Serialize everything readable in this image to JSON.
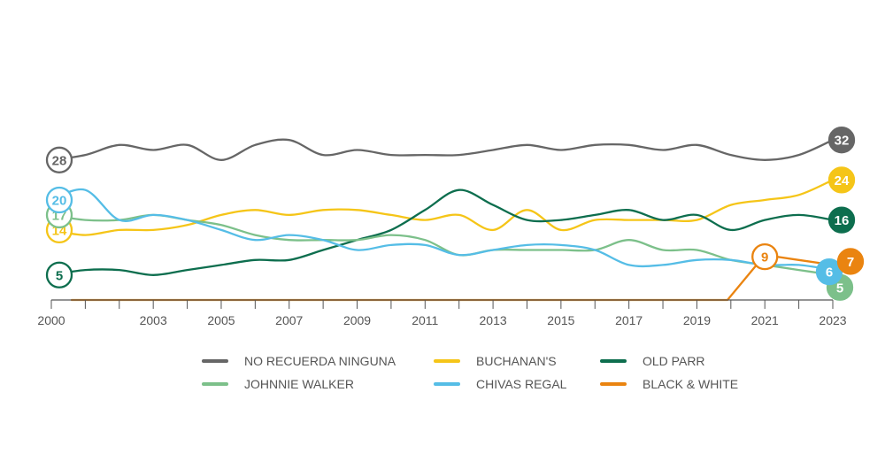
{
  "chart_data": {
    "type": "line",
    "x": [
      2000,
      2001,
      2002,
      2003,
      2004,
      2005,
      2006,
      2007,
      2008,
      2009,
      2010,
      2011,
      2012,
      2013,
      2014,
      2015,
      2016,
      2017,
      2018,
      2019,
      2020,
      2021,
      2022,
      2023
    ],
    "x_tick_labels": [
      "2000",
      "2003",
      "2005",
      "2007",
      "2009",
      "2011",
      "2013",
      "2015",
      "2017",
      "2019",
      "2021",
      "2023"
    ],
    "title": "",
    "xlabel": "",
    "ylabel": "",
    "ylim": [
      0,
      34
    ],
    "grid": false,
    "legend_position": "bottom-center",
    "series": [
      {
        "name": "NO RECUERDA NINGUNA",
        "color": "#666666",
        "values": [
          28,
          29,
          31,
          30,
          31,
          28,
          31,
          32,
          29,
          30,
          29,
          29,
          29,
          30,
          31,
          30,
          31,
          31,
          30,
          31,
          29,
          28,
          29,
          32
        ],
        "start_label": "28",
        "end_label": "32"
      },
      {
        "name": "BUCHANAN'S",
        "color": "#f5c518",
        "values": [
          14,
          13,
          14,
          14,
          15,
          17,
          18,
          17,
          18,
          18,
          17,
          16,
          17,
          14,
          18,
          14,
          16,
          16,
          16,
          16,
          19,
          20,
          21,
          24
        ],
        "start_label": "14",
        "end_label": "24"
      },
      {
        "name": "OLD PARR",
        "color": "#0d6e4e",
        "values": [
          5,
          6,
          6,
          5,
          6,
          7,
          8,
          8,
          10,
          12,
          14,
          18,
          22,
          19,
          16,
          16,
          17,
          18,
          16,
          17,
          14,
          16,
          17,
          16
        ],
        "start_label": "5",
        "end_label": "16"
      },
      {
        "name": "JOHNNIE WALKER",
        "color": "#7cc08a",
        "values": [
          17,
          16,
          16,
          17,
          16,
          15,
          13,
          12,
          12,
          12,
          13,
          12,
          9,
          10,
          10,
          10,
          10,
          12,
          10,
          10,
          8,
          7,
          6,
          5
        ],
        "start_label": "17",
        "end_label": "5"
      },
      {
        "name": "CHIVAS REGAL",
        "color": "#55bde6",
        "values": [
          20,
          22,
          16,
          17,
          16,
          14,
          12,
          13,
          12,
          10,
          11,
          11,
          9,
          10,
          11,
          11,
          10,
          7,
          7,
          8,
          8,
          7,
          7,
          6
        ],
        "start_label": "20",
        "end_label": "6"
      },
      {
        "name": "BLACK & WHITE",
        "color": "#ea8410",
        "values": [
          0,
          0,
          0,
          0,
          0,
          0,
          0,
          0,
          0,
          0,
          0,
          0,
          0,
          0,
          0,
          0,
          0,
          0,
          0,
          0,
          0,
          9,
          8,
          7
        ],
        "peak_label": "9",
        "end_label": "7"
      }
    ]
  }
}
